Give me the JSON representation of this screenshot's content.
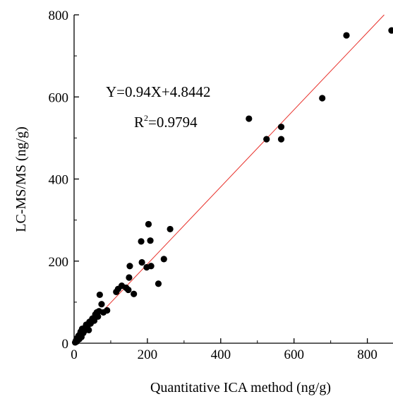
{
  "chart_data": {
    "type": "scatter",
    "title": "",
    "xlabel": "Quantitative ICA method (ng/g)",
    "ylabel": "LC-MS/MS  (ng/g)",
    "xlim": [
      0,
      870
    ],
    "ylim": [
      0,
      800
    ],
    "x_ticks": [
      0,
      200,
      400,
      600,
      800
    ],
    "y_ticks": [
      0,
      200,
      400,
      600,
      800
    ],
    "x_tick_labels": [
      "0",
      "200",
      "400",
      "600",
      "800"
    ],
    "y_tick_labels": [
      "0",
      "200",
      "400",
      "600",
      "800"
    ],
    "grid": false,
    "point_color": "#000000",
    "fit_line_color": "#e8302a",
    "fit": {
      "slope": 0.94,
      "intercept": 4.8442
    },
    "annotations": {
      "equation": "Y=0.94X+4.8442",
      "r2_prefix": "R",
      "r2_sup": "2",
      "r2_value": "=0.9794"
    },
    "points": [
      {
        "x": 3,
        "y": 2
      },
      {
        "x": 5,
        "y": 6
      },
      {
        "x": 7,
        "y": 4
      },
      {
        "x": 8,
        "y": 12
      },
      {
        "x": 10,
        "y": 8
      },
      {
        "x": 12,
        "y": 18
      },
      {
        "x": 14,
        "y": 10
      },
      {
        "x": 16,
        "y": 22
      },
      {
        "x": 18,
        "y": 28
      },
      {
        "x": 20,
        "y": 15
      },
      {
        "x": 22,
        "y": 35
      },
      {
        "x": 25,
        "y": 25
      },
      {
        "x": 28,
        "y": 30
      },
      {
        "x": 30,
        "y": 38
      },
      {
        "x": 33,
        "y": 45
      },
      {
        "x": 36,
        "y": 40
      },
      {
        "x": 40,
        "y": 32
      },
      {
        "x": 42,
        "y": 52
      },
      {
        "x": 45,
        "y": 48
      },
      {
        "x": 50,
        "y": 60
      },
      {
        "x": 55,
        "y": 55
      },
      {
        "x": 58,
        "y": 70
      },
      {
        "x": 62,
        "y": 75
      },
      {
        "x": 65,
        "y": 65
      },
      {
        "x": 68,
        "y": 78
      },
      {
        "x": 70,
        "y": 118
      },
      {
        "x": 75,
        "y": 95
      },
      {
        "x": 80,
        "y": 75
      },
      {
        "x": 90,
        "y": 80
      },
      {
        "x": 115,
        "y": 125
      },
      {
        "x": 120,
        "y": 132
      },
      {
        "x": 130,
        "y": 140
      },
      {
        "x": 142,
        "y": 135
      },
      {
        "x": 148,
        "y": 130
      },
      {
        "x": 150,
        "y": 160
      },
      {
        "x": 152,
        "y": 188
      },
      {
        "x": 163,
        "y": 120
      },
      {
        "x": 183,
        "y": 248
      },
      {
        "x": 185,
        "y": 197
      },
      {
        "x": 198,
        "y": 185
      },
      {
        "x": 203,
        "y": 290
      },
      {
        "x": 208,
        "y": 250
      },
      {
        "x": 210,
        "y": 188
      },
      {
        "x": 230,
        "y": 145
      },
      {
        "x": 245,
        "y": 205
      },
      {
        "x": 262,
        "y": 278
      },
      {
        "x": 477,
        "y": 547
      },
      {
        "x": 525,
        "y": 497
      },
      {
        "x": 565,
        "y": 527
      },
      {
        "x": 565,
        "y": 497
      },
      {
        "x": 677,
        "y": 597
      },
      {
        "x": 743,
        "y": 750
      },
      {
        "x": 866,
        "y": 762
      }
    ]
  }
}
